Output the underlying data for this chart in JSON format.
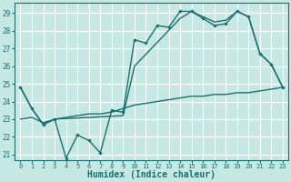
{
  "xlabel": "Humidex (Indice chaleur)",
  "bg_color": "#c5e8e3",
  "grid_color": "#ffffff",
  "line_color": "#1a7070",
  "xlim": [
    -0.5,
    23.5
  ],
  "ylim": [
    20.7,
    29.6
  ],
  "yticks": [
    21,
    22,
    23,
    24,
    25,
    26,
    27,
    28,
    29
  ],
  "xticks": [
    0,
    1,
    2,
    3,
    4,
    5,
    6,
    7,
    8,
    9,
    10,
    11,
    12,
    13,
    14,
    15,
    16,
    17,
    18,
    19,
    20,
    21,
    22,
    23
  ],
  "line1_x": [
    0,
    1,
    2,
    3,
    4,
    5,
    6,
    7,
    8,
    9,
    10,
    11,
    12,
    13,
    14,
    15,
    16,
    17,
    18,
    19,
    20,
    21,
    22,
    23
  ],
  "line1_y": [
    24.8,
    23.6,
    22.7,
    23.0,
    20.8,
    22.1,
    21.8,
    21.1,
    23.5,
    23.4,
    27.5,
    27.3,
    28.3,
    28.2,
    29.1,
    29.1,
    28.7,
    28.3,
    28.4,
    29.1,
    28.8,
    26.7,
    26.1,
    24.8
  ],
  "line2_x": [
    0,
    1,
    2,
    3,
    9,
    10,
    14,
    15,
    17,
    18,
    19,
    20,
    21,
    22,
    23
  ],
  "line2_y": [
    24.8,
    23.6,
    22.7,
    23.0,
    23.2,
    26.0,
    28.7,
    29.1,
    28.5,
    28.6,
    29.1,
    28.8,
    26.7,
    26.1,
    24.8
  ],
  "line3_x": [
    0,
    1,
    2,
    3,
    4,
    5,
    6,
    7,
    8,
    9,
    10,
    11,
    12,
    13,
    14,
    15,
    16,
    17,
    18,
    19,
    20,
    21,
    22,
    23
  ],
  "line3_y": [
    23.0,
    23.1,
    22.8,
    23.0,
    23.1,
    23.2,
    23.3,
    23.3,
    23.4,
    23.6,
    23.8,
    23.9,
    24.0,
    24.1,
    24.2,
    24.3,
    24.3,
    24.4,
    24.4,
    24.5,
    24.5,
    24.6,
    24.7,
    24.8
  ]
}
